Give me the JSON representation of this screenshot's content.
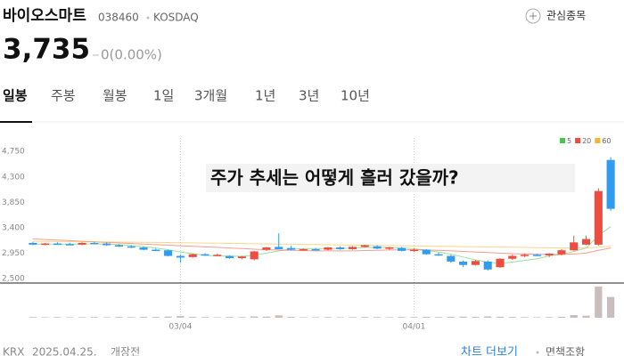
{
  "header": {
    "name": "바이오스마트",
    "code": "038460",
    "market": "KOSDAQ",
    "watch": "관심종목",
    "price": "3,735",
    "change": "0(0.00%)"
  },
  "tabs": [
    "일봉",
    "주봉",
    "월봉",
    "1일",
    "3개월",
    "1년",
    "3년",
    "10년"
  ],
  "chart_data": {
    "type": "candlestick",
    "annotation": "주가 추세는 어떻게 흘러 갔을까?",
    "categories": [
      null,
      null,
      null,
      null,
      null,
      null,
      null,
      null,
      null,
      null,
      null,
      null,
      "03/04",
      null,
      null,
      null,
      null,
      null,
      null,
      null,
      null,
      null,
      null,
      null,
      null,
      null,
      null,
      null,
      null,
      null,
      null,
      "04/01",
      null,
      null,
      null,
      null,
      null,
      null,
      null,
      null,
      null,
      null,
      null,
      null,
      null,
      null,
      null,
      null
    ],
    "open": [
      3130,
      3100,
      3120,
      3110,
      3100,
      3130,
      3120,
      3090,
      3070,
      3050,
      3010,
      3000,
      2900,
      2880,
      2930,
      2910,
      2900,
      2860,
      2840,
      3010,
      3060,
      3040,
      3010,
      3020,
      3010,
      3050,
      3020,
      3060,
      3070,
      3030,
      3040,
      2990,
      3010,
      2930,
      2900,
      2800,
      2740,
      2800,
      2700,
      2850,
      2900,
      2920,
      2910,
      2930,
      3000,
      3100,
      3100,
      4600
    ],
    "high": [
      3150,
      3130,
      3140,
      3130,
      3140,
      3150,
      3140,
      3110,
      3090,
      3070,
      3030,
      3010,
      2920,
      2940,
      2950,
      2940,
      2910,
      2900,
      2990,
      3060,
      3300,
      3080,
      3030,
      3040,
      3060,
      3070,
      3070,
      3100,
      3090,
      3060,
      3060,
      3030,
      3020,
      2960,
      2920,
      2820,
      2830,
      2820,
      2860,
      2920,
      2940,
      2940,
      2950,
      3020,
      3260,
      3260,
      4100,
      4650
    ],
    "low": [
      3090,
      3090,
      3100,
      3090,
      3090,
      3110,
      3080,
      3060,
      3040,
      3000,
      2990,
      2890,
      2780,
      2870,
      2900,
      2900,
      2850,
      2840,
      2820,
      2990,
      3020,
      3000,
      2990,
      3000,
      3000,
      3010,
      3010,
      3050,
      3020,
      3010,
      2980,
      2970,
      2920,
      2900,
      2780,
      2700,
      2730,
      2640,
      2690,
      2830,
      2880,
      2900,
      2880,
      2910,
      2990,
      3090,
      3080,
      3700
    ],
    "close": [
      3100,
      3120,
      3110,
      3100,
      3130,
      3120,
      3090,
      3070,
      3050,
      3010,
      3000,
      2900,
      2870,
      2930,
      2910,
      2920,
      2860,
      2890,
      2980,
      3050,
      3020,
      3010,
      3020,
      3010,
      3050,
      3020,
      3060,
      3090,
      3030,
      3050,
      2990,
      3010,
      2930,
      2910,
      2800,
      2740,
      2810,
      2660,
      2850,
      2900,
      2920,
      2910,
      2940,
      3000,
      3140,
      3200,
      4050,
      3735
    ],
    "volume": [
      8,
      6,
      7,
      5,
      6,
      7,
      6,
      8,
      7,
      9,
      8,
      12,
      18,
      9,
      7,
      6,
      8,
      7,
      14,
      12,
      25,
      9,
      6,
      6,
      7,
      6,
      7,
      8,
      7,
      6,
      8,
      7,
      9,
      8,
      10,
      12,
      9,
      14,
      11,
      8,
      7,
      6,
      7,
      10,
      28,
      22,
      330,
      220
    ],
    "up_color": "#f04b3f",
    "down_color": "#2f9cf0",
    "volume_color": "#c9bebe",
    "series": [
      {
        "name": "5",
        "color": "#46c94a",
        "values": [
          3110,
          3110,
          3110,
          3110,
          3110,
          3115,
          3110,
          3100,
          3085,
          3065,
          3040,
          3010,
          2970,
          2940,
          2910,
          2900,
          2895,
          2895,
          2910,
          2950,
          2990,
          3020,
          3030,
          3030,
          3030,
          3030,
          3040,
          3050,
          3050,
          3050,
          3040,
          3030,
          3000,
          2970,
          2930,
          2880,
          2830,
          2790,
          2770,
          2790,
          2820,
          2850,
          2900,
          2930,
          2980,
          3040,
          3260,
          3420
        ]
      },
      {
        "name": "20",
        "color": "#f04b3f",
        "values": [
          3200,
          3190,
          3180,
          3170,
          3160,
          3150,
          3140,
          3130,
          3120,
          3110,
          3100,
          3090,
          3080,
          3070,
          3060,
          3050,
          3040,
          3030,
          3020,
          3010,
          3005,
          3000,
          2995,
          2990,
          2990,
          2990,
          2990,
          2995,
          3000,
          3005,
          3010,
          3010,
          3005,
          3000,
          2990,
          2980,
          2970,
          2960,
          2950,
          2940,
          2935,
          2930,
          2925,
          2925,
          2935,
          2950,
          3000,
          3040
        ]
      },
      {
        "name": "60",
        "color": "#f7b52c",
        "values": [
          3160,
          3158,
          3156,
          3154,
          3152,
          3150,
          3148,
          3146,
          3144,
          3142,
          3140,
          3137,
          3134,
          3131,
          3128,
          3125,
          3122,
          3119,
          3116,
          3113,
          3110,
          3107,
          3104,
          3101,
          3098,
          3095,
          3092,
          3089,
          3086,
          3083,
          3080,
          3077,
          3074,
          3071,
          3068,
          3065,
          3062,
          3059,
          3056,
          3053,
          3050,
          3047,
          3044,
          3041,
          3040,
          3042,
          3055,
          3070
        ]
      }
    ],
    "ylim": [
      2420,
      4990
    ],
    "yticks": [
      {
        "value": 4750,
        "label": "4,750"
      },
      {
        "value": 4300,
        "label": "4,300"
      },
      {
        "value": 3850,
        "label": "3,850"
      },
      {
        "value": 3400,
        "label": "3,400"
      },
      {
        "value": 2950,
        "label": "2,950"
      },
      {
        "value": 2500,
        "label": "2,500"
      }
    ]
  },
  "footer": {
    "source": "KRX",
    "date": "2025.04.25.",
    "status": "개장전",
    "more": "차트 더보기",
    "disclaimer": "면책조항"
  }
}
